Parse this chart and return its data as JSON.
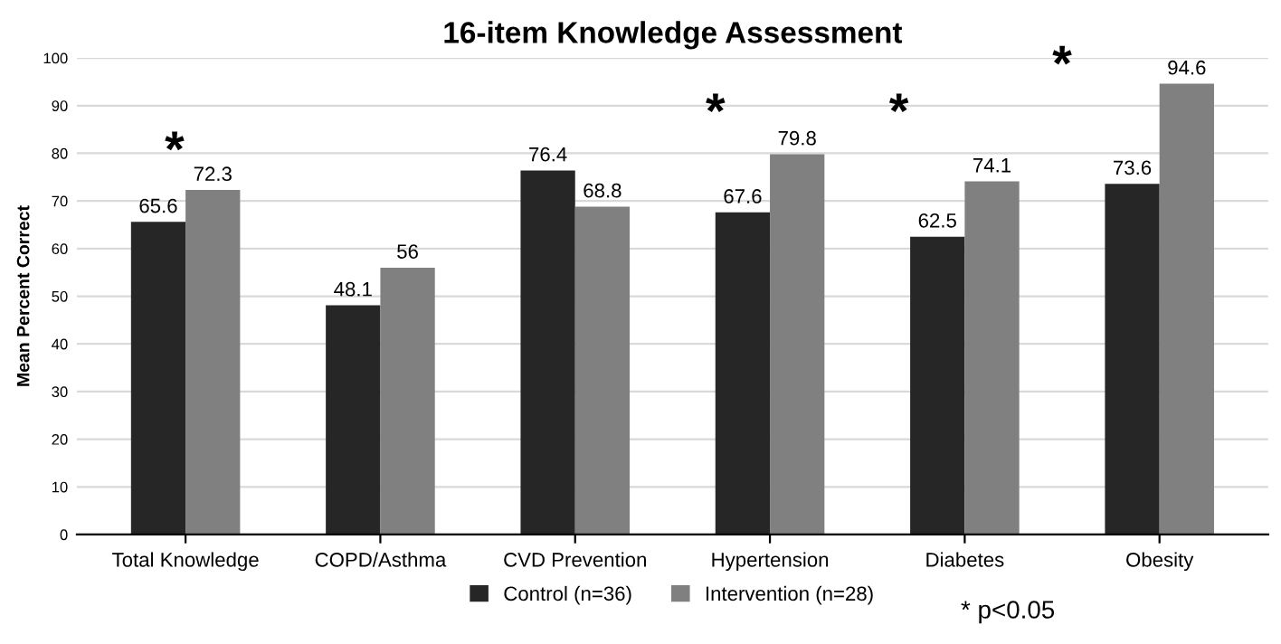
{
  "chart_data": {
    "type": "bar",
    "title": "16-item Knowledge Assessment",
    "ylabel": "Mean Percent Correct",
    "categories": [
      "Total Knowledge",
      "COPD/Asthma",
      "CVD Prevention",
      "Hypertension",
      "Diabetes",
      "Obesity"
    ],
    "series": [
      {
        "name": "Control (n=36)",
        "color": "#262626",
        "values": [
          65.6,
          48.1,
          76.4,
          67.6,
          62.5,
          73.6
        ]
      },
      {
        "name": "Intervention (n=28)",
        "color": "#808080",
        "values": [
          72.3,
          56,
          68.8,
          79.8,
          74.1,
          94.6
        ]
      }
    ],
    "ylim": [
      0,
      100
    ],
    "yticks": [
      0,
      10,
      20,
      30,
      40,
      50,
      60,
      70,
      80,
      90,
      100
    ],
    "grid": "y",
    "legend": "bottom",
    "data_labels": true,
    "annotations": [
      "*",
      "*",
      "*",
      "*",
      "* p<0.05"
    ]
  }
}
